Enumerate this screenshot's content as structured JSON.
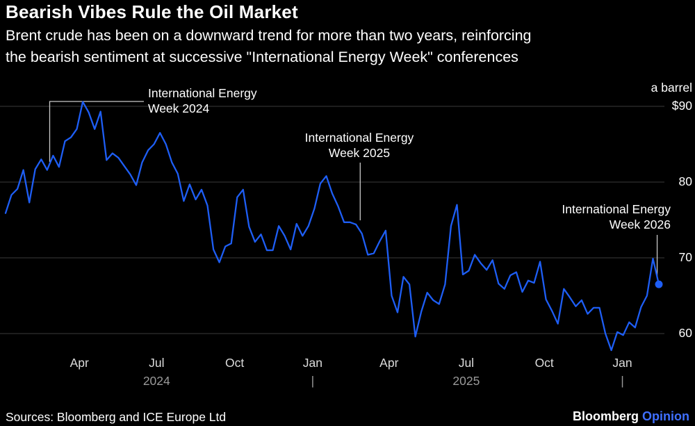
{
  "header": {
    "title": "Bearish Vibes Rule the Oil Market",
    "subtitle_lines": [
      "Brent crude has been on a downward trend for more than two years, reinforcing",
      "the bearish sentiment at successive \"International Energy Week\" conferences"
    ]
  },
  "axes": {
    "unit_label": "a barrel",
    "y_labels": [
      {
        "text": "$90",
        "value": 90
      },
      {
        "text": "80",
        "value": 80
      },
      {
        "text": "70",
        "value": 70
      },
      {
        "text": "60",
        "value": 60
      }
    ],
    "x_ticks": [
      {
        "label": "Apr",
        "date": "2024-04-01"
      },
      {
        "label": "Jul",
        "date": "2024-07-01"
      },
      {
        "label": "Oct",
        "date": "2024-10-01"
      },
      {
        "label": "Jan",
        "date": "2025-01-01"
      },
      {
        "label": "Apr",
        "date": "2025-04-01"
      },
      {
        "label": "Jul",
        "date": "2025-07-01"
      },
      {
        "label": "Oct",
        "date": "2025-10-01"
      },
      {
        "label": "Jan",
        "date": "2026-01-01"
      }
    ],
    "year_row": [
      {
        "text": "2024",
        "date": "2024-07-01"
      },
      {
        "text": "|",
        "date": "2025-01-01"
      },
      {
        "text": "2025",
        "date": "2025-07-01"
      },
      {
        "text": "|",
        "date": "2026-01-01"
      }
    ]
  },
  "footer": {
    "source": "Sources: Bloomberg and ICE Europe Ltd",
    "brand_name": "Bloomberg",
    "brand_suffix": "Opinion"
  },
  "colors": {
    "background": "#000000",
    "line": "#1e5ef5",
    "brand_blue": "#3f6fff",
    "grid": "#3a3a3a",
    "connector": "#c9c9c9",
    "text": "#ffffff"
  },
  "chart_data": {
    "type": "line",
    "title": "Bearish Vibes Rule the Oil Market",
    "series_name": "Brent crude price",
    "unit": "USD a barrel",
    "start_date": "2024-01-05",
    "interval_days": 7,
    "ylim": [
      56,
      92
    ],
    "gridline_values": [
      90,
      80,
      70,
      60
    ],
    "legend": "none",
    "values": [
      75.9,
      78.3,
      79.1,
      81.6,
      77.3,
      81.7,
      83.0,
      81.6,
      83.5,
      82.0,
      85.4,
      85.9,
      87.0,
      90.6,
      89.2,
      87.0,
      89.3,
      82.9,
      83.8,
      83.2,
      82.1,
      81.0,
      79.6,
      82.6,
      84.2,
      85.0,
      86.5,
      85.0,
      82.6,
      81.1,
      77.5,
      79.7,
      77.7,
      79.0,
      76.9,
      71.1,
      69.4,
      71.5,
      71.9,
      78.0,
      79.0,
      74.1,
      72.1,
      73.1,
      71.0,
      71.0,
      74.2,
      72.9,
      71.1,
      74.5,
      72.9,
      74.2,
      76.5,
      79.8,
      80.8,
      78.5,
      76.8,
      74.7,
      74.7,
      74.4,
      73.2,
      70.4,
      70.6,
      72.2,
      73.6,
      65.0,
      62.8,
      67.5,
      66.5,
      59.6,
      62.9,
      65.4,
      64.4,
      63.9,
      66.5,
      74.2,
      77.0,
      67.8,
      68.3,
      70.4,
      69.3,
      68.4,
      69.7,
      66.6,
      65.9,
      67.7,
      68.1,
      65.5,
      67.0,
      66.7,
      69.5,
      64.5,
      63.0,
      61.3,
      65.9,
      64.8,
      63.6,
      64.4,
      62.6,
      63.4,
      63.4,
      60.0,
      57.8,
      60.2,
      59.8,
      61.5,
      60.8,
      63.5,
      65.0,
      69.9,
      66.5
    ],
    "events": [
      {
        "lines": [
          "International Energy",
          "Week 2024"
        ],
        "date": "2024-02-26",
        "price": 82.2
      },
      {
        "lines": [
          "International Energy",
          "Week 2025"
        ],
        "date": "2025-02-26",
        "price": 74.4
      },
      {
        "lines": [
          "International Energy",
          "Week 2026"
        ],
        "date": "2026-02-11",
        "price": 66.5
      }
    ]
  }
}
